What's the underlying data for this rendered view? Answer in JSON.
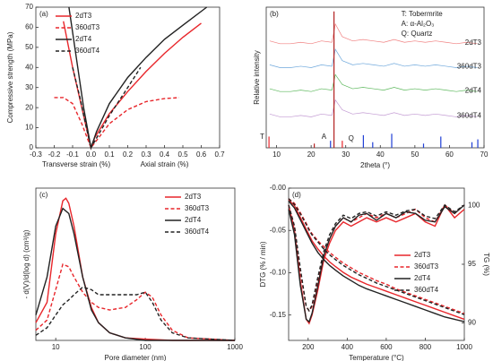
{
  "chart_data": [
    {
      "type": "line",
      "label": "(a)",
      "xlabels": [
        "Transverse strain (%)",
        "Axial strain (%)"
      ],
      "ylabel": "Compressive strength (MPa)",
      "xlim": [
        -0.3,
        0.7
      ],
      "xticks": [
        -0.3,
        -0.2,
        -0.1,
        {
          "value": 0,
          "label": "0.0"
        },
        0.1,
        0.2,
        0.3,
        0.4,
        0.5,
        0.6,
        0.7
      ],
      "ylim": [
        0,
        70
      ],
      "yticks": [
        0,
        10,
        20,
        30,
        40,
        50,
        60,
        70
      ],
      "legend": "upper left",
      "series": [
        {
          "name": "2dT3",
          "color": "#e8262b",
          "style": "solid",
          "x": [
            -0.15,
            -0.1,
            -0.05,
            -0.02,
            0,
            0.02,
            0.1,
            0.2,
            0.3,
            0.4,
            0.5,
            0.6
          ],
          "values": [
            63,
            40,
            20,
            8,
            0,
            5,
            17,
            28,
            38,
            47,
            55,
            62
          ]
        },
        {
          "name": "360dT3",
          "color": "#e8262b",
          "style": "dashed",
          "x": [
            -0.2,
            -0.15,
            -0.1,
            -0.05,
            0,
            0.05,
            0.1,
            0.2,
            0.3,
            0.4,
            0.48
          ],
          "values": [
            25,
            25,
            22,
            12,
            0,
            6,
            12,
            19,
            23,
            24.5,
            25
          ]
        },
        {
          "name": "2dT4",
          "color": "#222222",
          "style": "solid",
          "x": [
            -0.12,
            -0.08,
            -0.04,
            0,
            0.03,
            0.1,
            0.2,
            0.3,
            0.4,
            0.5,
            0.63
          ],
          "values": [
            70,
            45,
            20,
            0,
            8,
            22,
            35,
            45,
            54,
            61,
            70
          ]
        },
        {
          "name": "360dT4",
          "color": "#222222",
          "style": "dashed",
          "x": [
            -0.1,
            -0.06,
            -0.03,
            0,
            0.05,
            0.1,
            0.2,
            0.27
          ],
          "values": [
            40,
            25,
            12,
            0,
            8,
            16,
            30,
            40
          ]
        }
      ]
    },
    {
      "type": "xrd",
      "label": "(b)",
      "xlabel": "2theta (°)",
      "ylabel": "Relative intensity",
      "xlim": [
        7,
        70
      ],
      "xticks": [
        10,
        20,
        30,
        40,
        50,
        60,
        70
      ],
      "ylim": [
        0,
        100
      ],
      "annotations": [
        {
          "text": "T: Tobermrite",
          "color": "#e8262b"
        },
        {
          "text": "A: α-Al₂O₃",
          "color": "#1f3fd6"
        },
        {
          "text": "Q: Quartz",
          "color": "#111111"
        }
      ],
      "x": [
        8,
        11,
        14,
        17,
        20,
        23,
        26,
        27,
        29,
        32,
        35,
        38,
        41,
        44,
        47,
        50,
        53,
        56,
        59,
        62,
        65,
        68
      ],
      "series": [
        {
          "name": "2dT3",
          "color": "#f08080",
          "values": [
            76,
            74,
            74,
            75,
            74,
            76,
            75,
            88,
            79,
            76,
            77,
            76,
            75,
            77,
            75,
            76,
            75,
            76,
            75,
            74,
            75,
            74
          ]
        },
        {
          "name": "360dT3",
          "color": "#6fa8dc",
          "values": [
            59,
            57,
            57,
            58,
            57,
            59,
            58,
            70,
            62,
            59,
            60,
            59,
            58,
            60,
            58,
            59,
            58,
            59,
            58,
            57,
            58,
            57
          ]
        },
        {
          "name": "2dT4",
          "color": "#5cb85c",
          "values": [
            42,
            40,
            40,
            41,
            40,
            42,
            41,
            52,
            45,
            42,
            43,
            42,
            41,
            43,
            41,
            42,
            41,
            42,
            41,
            40,
            41,
            40
          ]
        },
        {
          "name": "360dT4",
          "color": "#c39bd3",
          "values": [
            24,
            22,
            22,
            23,
            22,
            24,
            23,
            34,
            27,
            24,
            25,
            24,
            23,
            25,
            23,
            24,
            23,
            24,
            23,
            22,
            23,
            22
          ]
        }
      ],
      "references": [
        {
          "name": "T",
          "color": "#e8262b",
          "positions": [
            7.8,
            29.0
          ],
          "heights": [
            8,
            5
          ]
        },
        {
          "name": "A",
          "color": "#1f3fd6",
          "positions": [
            25.6,
            35.1,
            37.8,
            43.3,
            52.5,
            57.5,
            66.5,
            68.2
          ],
          "heights": [
            5,
            9,
            4,
            10,
            3,
            8,
            4,
            6
          ]
        },
        {
          "name": "Q",
          "color": "#b22222",
          "positions": [
            20.9,
            26.6
          ],
          "heights": [
            3,
            97
          ]
        }
      ]
    },
    {
      "type": "line",
      "label": "(c)",
      "xlabel": "Pore diameter  (nm)",
      "ylabel": "- d(V)/d(log d) (cm³/g)",
      "log_x": true,
      "xlim": [
        6,
        1000
      ],
      "xticks": [
        10,
        100,
        1000
      ],
      "ylim": [
        0,
        0.6
      ],
      "legend": "upper right",
      "series": [
        {
          "name": "2dT3",
          "color": "#e8262b",
          "style": "solid",
          "x": [
            6,
            8,
            10,
            12,
            13,
            14,
            16,
            20,
            25,
            30,
            40,
            60,
            100,
            200,
            1000
          ],
          "values": [
            0.07,
            0.15,
            0.42,
            0.55,
            0.56,
            0.54,
            0.45,
            0.25,
            0.13,
            0.07,
            0.03,
            0.01,
            0.005,
            0,
            0
          ]
        },
        {
          "name": "360dT3",
          "color": "#e8262b",
          "style": "dashed",
          "x": [
            6,
            8,
            10,
            12,
            14,
            16,
            20,
            25,
            30,
            40,
            60,
            80,
            100,
            120,
            150,
            200,
            300,
            1000
          ],
          "values": [
            0.04,
            0.08,
            0.2,
            0.3,
            0.29,
            0.25,
            0.19,
            0.15,
            0.13,
            0.12,
            0.13,
            0.16,
            0.19,
            0.17,
            0.1,
            0.04,
            0.01,
            0
          ]
        },
        {
          "name": "2dT4",
          "color": "#222222",
          "style": "solid",
          "x": [
            6,
            8,
            10,
            12,
            14,
            16,
            20,
            25,
            30,
            40,
            60,
            100,
            1000
          ],
          "values": [
            0.1,
            0.25,
            0.45,
            0.52,
            0.5,
            0.42,
            0.25,
            0.12,
            0.07,
            0.03,
            0.01,
            0,
            0
          ]
        },
        {
          "name": "360dT4",
          "color": "#222222",
          "style": "dashed",
          "x": [
            6,
            8,
            10,
            12,
            14,
            16,
            20,
            25,
            30,
            40,
            60,
            80,
            100,
            120,
            150,
            200,
            300,
            1000
          ],
          "values": [
            0.02,
            0.05,
            0.1,
            0.14,
            0.16,
            0.18,
            0.21,
            0.2,
            0.18,
            0.18,
            0.18,
            0.18,
            0.19,
            0.15,
            0.08,
            0.03,
            0.01,
            0
          ]
        }
      ]
    },
    {
      "type": "line",
      "label": "(d)",
      "xlabel": "Temperature (°C)",
      "ylabel": "DTG (% / min)",
      "y2label": "TG (%)",
      "xlim": [
        100,
        1000
      ],
      "xticks": [
        200,
        400,
        600,
        800,
        1000
      ],
      "ylim": [
        -0.18,
        0
      ],
      "yticks": [
        {
          "value": 0,
          "label": "-0.00"
        },
        -0.05,
        {
          "value": -0.1,
          "label": "-0.10"
        },
        -0.15
      ],
      "y2lim": [
        88.5,
        101.5
      ],
      "y2ticks": [
        90,
        95,
        100
      ],
      "legend": "center right",
      "x": [
        100,
        130,
        160,
        190,
        205,
        220,
        250,
        280,
        310,
        340,
        380,
        420,
        460,
        500,
        550,
        600,
        650,
        700,
        750,
        800,
        850,
        900,
        950,
        1000
      ],
      "series": [
        {
          "name": "2dT3",
          "color": "#e8262b",
          "style": "solid",
          "values": [
            -0.02,
            -0.05,
            -0.11,
            -0.155,
            -0.16,
            -0.15,
            -0.12,
            -0.085,
            -0.065,
            -0.05,
            -0.04,
            -0.045,
            -0.04,
            -0.035,
            -0.04,
            -0.035,
            -0.04,
            -0.035,
            -0.03,
            -0.04,
            -0.045,
            -0.02,
            -0.035,
            -0.025
          ],
          "y2_values": [
            100.5,
            100,
            99,
            98,
            97.5,
            97,
            96.3,
            95.7,
            95.2,
            94.8,
            94.3,
            93.9,
            93.6,
            93.3,
            93,
            92.7,
            92.4,
            92.1,
            91.8,
            91.5,
            91.2,
            90.9,
            90.6,
            90.3
          ]
        },
        {
          "name": "360dT3",
          "color": "#e8262b",
          "style": "dashed",
          "values": [
            -0.02,
            -0.045,
            -0.1,
            -0.14,
            -0.145,
            -0.14,
            -0.11,
            -0.08,
            -0.06,
            -0.045,
            -0.035,
            -0.04,
            -0.035,
            -0.03,
            -0.035,
            -0.03,
            -0.035,
            -0.03,
            -0.025,
            -0.035,
            -0.04,
            -0.02,
            -0.03,
            -0.02
          ],
          "y2_values": [
            100.6,
            100.2,
            99.4,
            98.5,
            98,
            97.6,
            97,
            96.5,
            96,
            95.6,
            95.1,
            94.7,
            94.3,
            94,
            93.6,
            93.3,
            92.9,
            92.6,
            92.3,
            92,
            91.7,
            91.4,
            91.1,
            90.8
          ]
        },
        {
          "name": "2dT4",
          "color": "#222222",
          "style": "solid",
          "values": [
            -0.025,
            -0.055,
            -0.115,
            -0.155,
            -0.158,
            -0.148,
            -0.115,
            -0.08,
            -0.06,
            -0.045,
            -0.035,
            -0.04,
            -0.032,
            -0.03,
            -0.038,
            -0.03,
            -0.035,
            -0.028,
            -0.03,
            -0.038,
            -0.04,
            -0.022,
            -0.03,
            -0.02
          ],
          "y2_values": [
            100.4,
            99.8,
            98.8,
            97.8,
            97.3,
            96.8,
            96,
            95.4,
            94.9,
            94.5,
            94,
            93.6,
            93.2,
            92.9,
            92.6,
            92.3,
            92,
            91.7,
            91.4,
            91.1,
            90.8,
            90.5,
            90.3,
            90.1
          ]
        },
        {
          "name": "360dT4",
          "color": "#222222",
          "style": "dashed",
          "values": [
            -0.02,
            -0.045,
            -0.095,
            -0.14,
            -0.145,
            -0.138,
            -0.105,
            -0.075,
            -0.055,
            -0.042,
            -0.032,
            -0.036,
            -0.03,
            -0.028,
            -0.033,
            -0.028,
            -0.032,
            -0.027,
            -0.025,
            -0.033,
            -0.036,
            -0.02,
            -0.028,
            -0.02
          ],
          "y2_values": [
            100.6,
            100.1,
            99.3,
            98.4,
            97.9,
            97.5,
            96.9,
            96.3,
            95.8,
            95.4,
            94.9,
            94.5,
            94.1,
            93.8,
            93.4,
            93.1,
            92.8,
            92.5,
            92.2,
            91.9,
            91.6,
            91.3,
            91,
            90.7
          ]
        }
      ]
    }
  ]
}
